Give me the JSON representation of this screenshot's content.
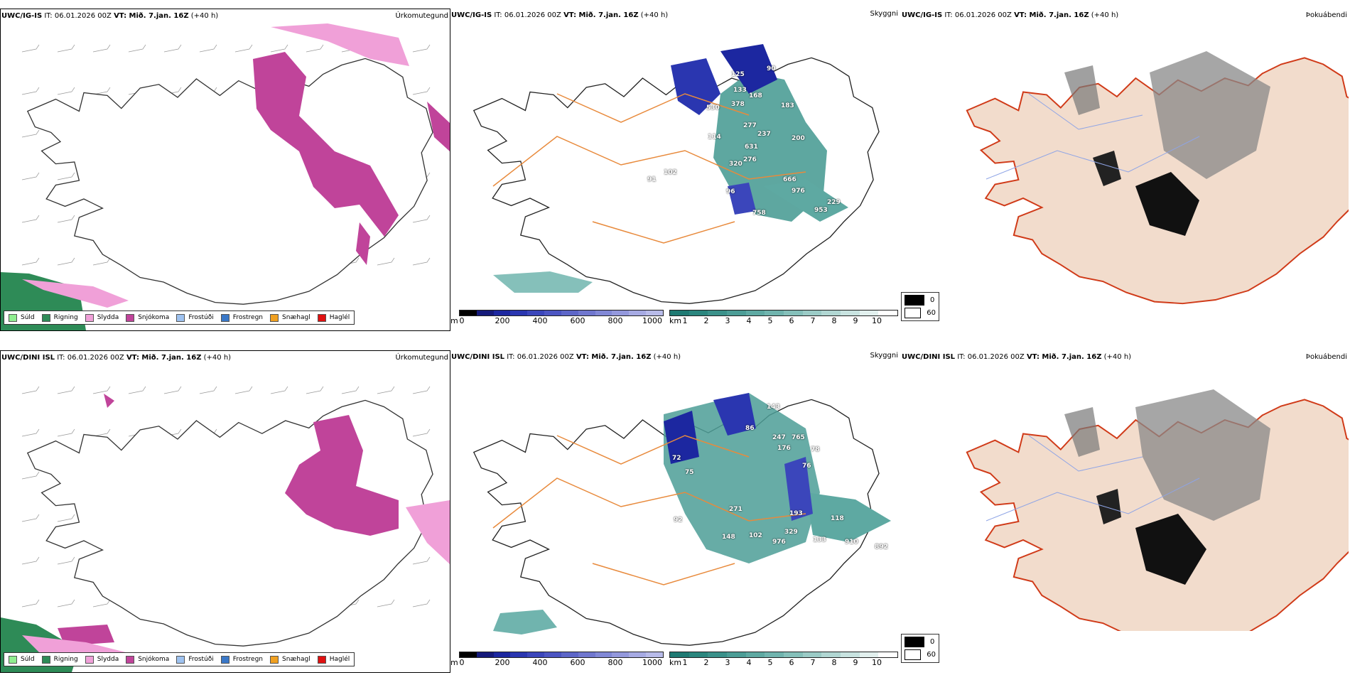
{
  "rows": [
    {
      "model": "UWC/IG-IS",
      "it_label": "IT:",
      "it_value": "06.01.2026 00Z",
      "vt_label": "VT: Mið. 7.jan. 16Z",
      "lead": "(+40 h)"
    },
    {
      "model": "UWC/DINI ISL",
      "it_label": "IT:",
      "it_value": "06.01.2026 00Z",
      "vt_label": "VT: Mið. 7.jan. 16Z",
      "lead": "(+40 h)"
    }
  ],
  "panel_names": {
    "precip": "Úrkomutegund",
    "visibility": "Skyggni",
    "fog": "Þokuábendi"
  },
  "precip_legend": [
    {
      "label": "Súld",
      "color": "#90ee90"
    },
    {
      "label": "Rigning",
      "color": "#2e8b57"
    },
    {
      "label": "Slydda",
      "color": "#f0a0d8"
    },
    {
      "label": "Snjókoma",
      "color": "#c0449a"
    },
    {
      "label": "Frostúði",
      "color": "#9ec2f0"
    },
    {
      "label": "Frostregn",
      "color": "#3a78c8"
    },
    {
      "label": "Snæhagl",
      "color": "#f0a020"
    },
    {
      "label": "Haglél",
      "color": "#e01010"
    }
  ],
  "elevation_bar": {
    "unit": "m",
    "ticks": [
      "0",
      "200",
      "400",
      "600",
      "800",
      "1000"
    ],
    "colors": [
      "#000000",
      "#151a7a",
      "#1c27a0",
      "#2a36b0",
      "#3b46bb",
      "#4c55c2",
      "#5d66c8",
      "#7077cf",
      "#8188d6",
      "#9398dc",
      "#a6aae3",
      "#b8bbe9"
    ]
  },
  "visibility_bar": {
    "unit": "km",
    "ticks": [
      "1",
      "2",
      "3",
      "4",
      "5",
      "6",
      "7",
      "8",
      "9",
      "10"
    ],
    "colors": [
      "#1f7a73",
      "#2b867e",
      "#3b918a",
      "#4c9d96",
      "#5ea9a2",
      "#70b4ae",
      "#85c0ba",
      "#9bcbc6",
      "#b1d7d3",
      "#c8e3e0",
      "#e2f0ee",
      "#ffffff"
    ]
  },
  "fog_legend": [
    {
      "label": "0",
      "color": "#000000"
    },
    {
      "label": "60",
      "color": "#ffffff"
    }
  ],
  "visibility_numbers_top": [
    "125",
    "90",
    "378",
    "168",
    "133",
    "183",
    "530",
    "114",
    "277",
    "237",
    "631",
    "276",
    "320",
    "200",
    "91",
    "102",
    "96",
    "666",
    "976",
    "758",
    "229",
    "953"
  ],
  "visibility_numbers_bottom": [
    "143",
    "86",
    "247",
    "765",
    "176",
    "78",
    "72",
    "75",
    "76",
    "271",
    "92",
    "148",
    "102",
    "193",
    "329",
    "976",
    "133",
    "910",
    "892",
    "118"
  ]
}
